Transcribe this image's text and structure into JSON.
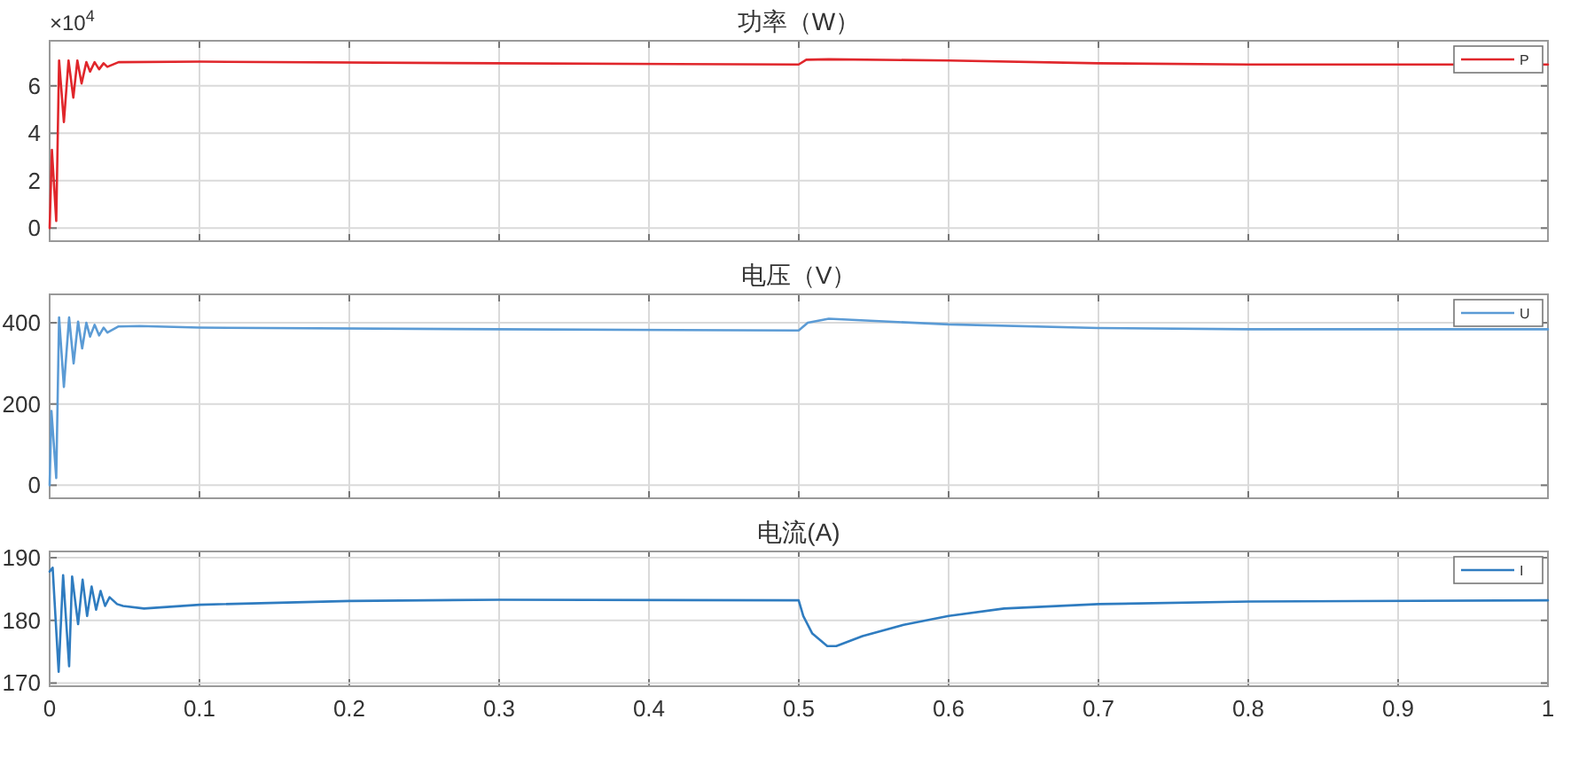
{
  "chart_data": [
    {
      "type": "line",
      "title": "功率（W）",
      "annotations": [
        "×10$^{4}$"
      ],
      "xlim": [
        0,
        1
      ],
      "xticks": [
        0,
        0.1,
        0.2,
        0.3,
        0.4,
        0.5,
        0.6,
        0.7,
        0.8,
        0.9,
        1
      ],
      "ylim": [
        -0.55,
        7.9
      ],
      "yticks": [
        0,
        2,
        4,
        6
      ],
      "grid": true,
      "legend": "top right",
      "tick_labels": "y",
      "x": [
        0,
        0.0015,
        0.0044,
        0.0063,
        0.0095,
        0.0126,
        0.0158,
        0.0185,
        0.0213,
        0.0245,
        0.027,
        0.03,
        0.033,
        0.036,
        0.0385,
        0.046,
        0.1,
        0.3,
        0.4999,
        0.505,
        0.52,
        0.6,
        0.7,
        0.8,
        1
      ],
      "series": [
        {
          "name": "P",
          "color": "#e0262b",
          "values": [
            0,
            3.3,
            0.3,
            7.07,
            4.47,
            7.07,
            5.5,
            7.07,
            6.1,
            7,
            6.6,
            7,
            6.7,
            6.95,
            6.8,
            7,
            7.02,
            6.95,
            6.9,
            7.1,
            7.12,
            7.07,
            6.95,
            6.9,
            6.9
          ]
        }
      ]
    },
    {
      "type": "line",
      "title": "电压（V）",
      "xlim": [
        0,
        1
      ],
      "xticks": [
        0,
        0.1,
        0.2,
        0.3,
        0.4,
        0.5,
        0.6,
        0.7,
        0.8,
        0.9,
        1
      ],
      "ylim": [
        -32,
        470
      ],
      "yticks": [
        0,
        200,
        400
      ],
      "grid": true,
      "legend": "top right",
      "tick_labels": "y",
      "x": [
        0,
        0.0012,
        0.0044,
        0.0063,
        0.0095,
        0.013,
        0.016,
        0.019,
        0.0217,
        0.0245,
        0.027,
        0.03,
        0.033,
        0.036,
        0.0385,
        0.046,
        0.06,
        0.1,
        0.3,
        0.4999,
        0.506,
        0.52,
        0.6,
        0.7,
        0.8,
        1
      ],
      "series": [
        {
          "name": "U",
          "color": "#5b9bd5",
          "values": [
            0,
            183,
            18,
            413,
            242,
            413,
            300,
            403,
            337,
            400,
            366,
            395,
            369,
            388,
            376,
            391,
            392,
            388,
            384,
            381,
            400,
            410,
            396,
            387,
            384,
            384
          ]
        }
      ]
    },
    {
      "type": "line",
      "title": "电流(A)",
      "xlim": [
        0,
        1
      ],
      "xticks": [
        0,
        0.1,
        0.2,
        0.3,
        0.4,
        0.5,
        0.6,
        0.7,
        0.8,
        0.9,
        1
      ],
      "ylim": [
        169.5,
        191
      ],
      "yticks": [
        170,
        180,
        190
      ],
      "grid": true,
      "legend": "top right",
      "x": [
        0,
        0.002,
        0.006,
        0.009,
        0.013,
        0.015,
        0.019,
        0.022,
        0.025,
        0.028,
        0.031,
        0.034,
        0.037,
        0.04,
        0.045,
        0.049,
        0.063,
        0.1,
        0.2,
        0.3,
        0.4999,
        0.503,
        0.509,
        0.519,
        0.525,
        0.5425,
        0.57,
        0.6,
        0.637,
        0.7,
        0.8,
        1
      ],
      "series": [
        {
          "name": "I",
          "color": "#2f7cc0",
          "values": [
            187.8,
            188.4,
            171.8,
            187.2,
            172.7,
            187,
            179.4,
            186.5,
            180.7,
            185.4,
            181.7,
            184.7,
            182.3,
            183.7,
            182.6,
            182.3,
            181.9,
            182.5,
            183.1,
            183.3,
            183.2,
            180.7,
            177.9,
            175.9,
            175.9,
            177.5,
            179.3,
            180.7,
            181.9,
            182.6,
            183,
            183.2
          ]
        }
      ]
    }
  ]
}
